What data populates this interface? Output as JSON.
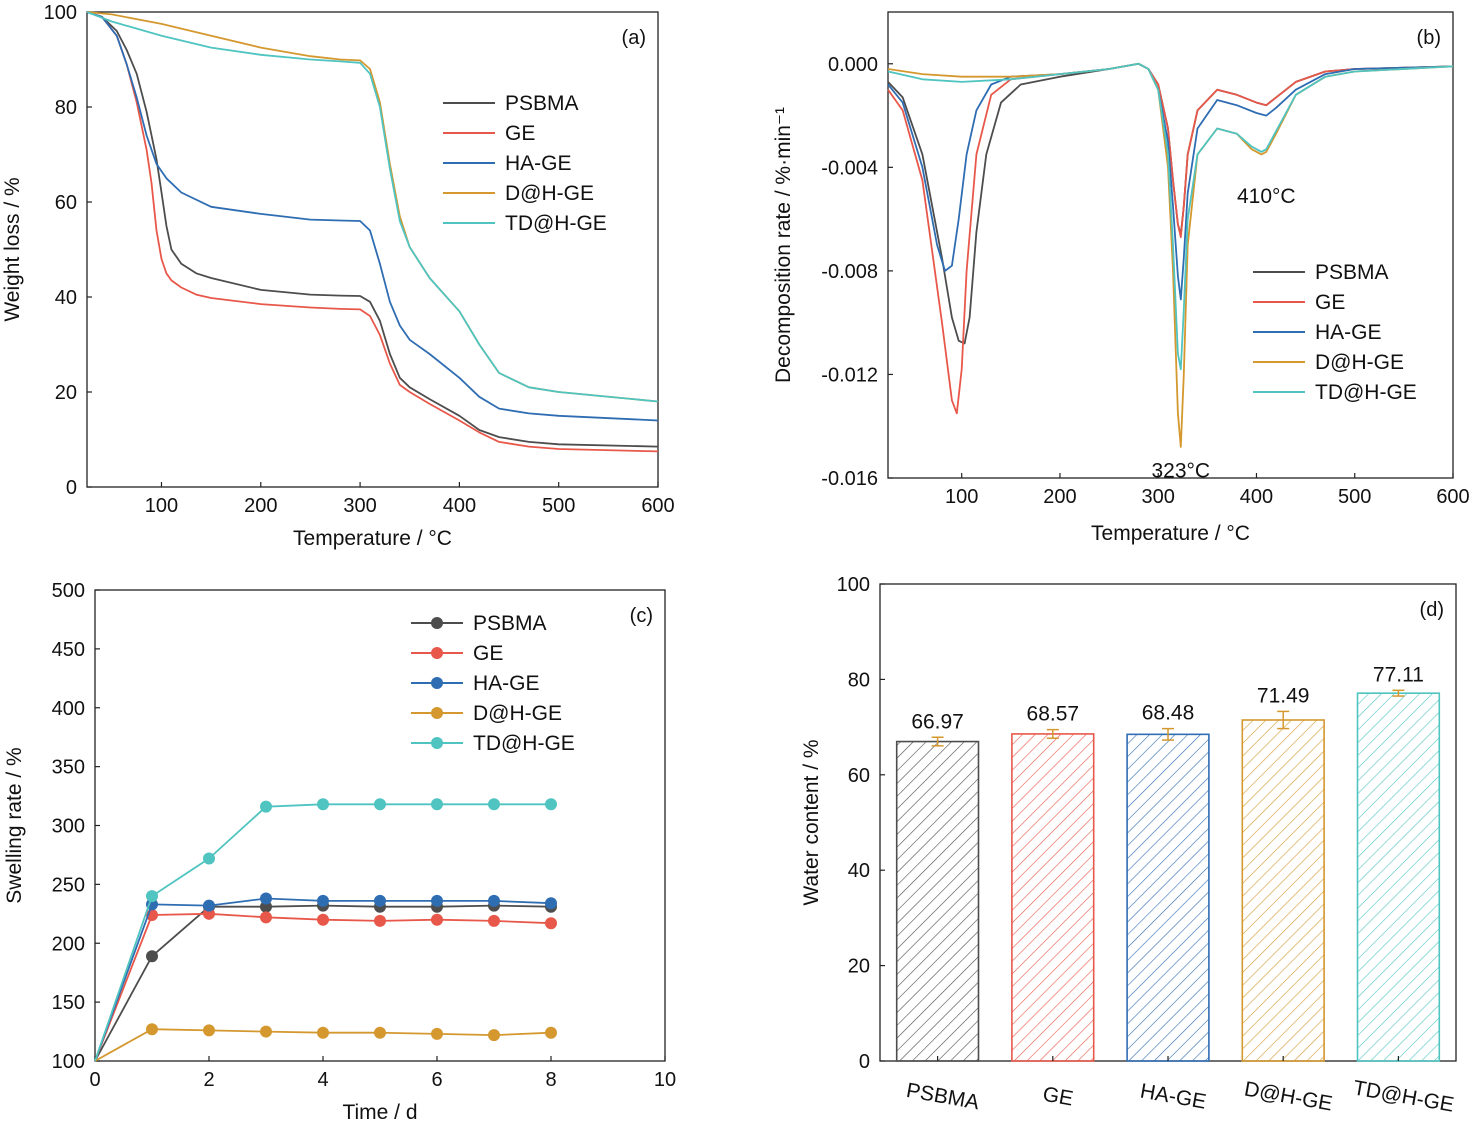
{
  "colors": {
    "PSBMA": "#4d4d4d",
    "GE": "#e8584a",
    "HA-GE": "#2f6db3",
    "D@H-GE": "#d4982f",
    "TD@H-GE": "#4fc4c0"
  },
  "chart_data": [
    {
      "id": "a",
      "type": "line",
      "panel_label": "(a)",
      "xlabel": "Temperature / °C",
      "ylabel": "Weight loss / %",
      "xlim": [
        25,
        600
      ],
      "ylim": [
        0,
        100
      ],
      "xticks": [
        100,
        200,
        300,
        400,
        500,
        600
      ],
      "yticks": [
        0,
        20,
        40,
        60,
        80,
        100
      ],
      "legend_position": "center-right",
      "grid": false,
      "series": [
        {
          "name": "PSBMA",
          "x": [
            25,
            40,
            55,
            65,
            75,
            85,
            95,
            100,
            105,
            110,
            120,
            135,
            150,
            200,
            250,
            280,
            300,
            310,
            320,
            330,
            340,
            350,
            370,
            400,
            420,
            440,
            470,
            500,
            600
          ],
          "y": [
            100,
            99,
            96,
            92,
            87,
            79,
            69,
            62,
            55,
            50,
            47,
            45,
            44,
            41.5,
            40.5,
            40.3,
            40.2,
            39,
            35,
            28,
            23,
            21,
            18.5,
            15,
            12,
            10.5,
            9.5,
            9,
            8.5
          ]
        },
        {
          "name": "GE",
          "x": [
            25,
            40,
            55,
            65,
            75,
            85,
            90,
            95,
            100,
            105,
            110,
            120,
            135,
            150,
            200,
            250,
            280,
            300,
            310,
            320,
            330,
            340,
            350,
            370,
            400,
            420,
            440,
            470,
            500,
            600
          ],
          "y": [
            100,
            99,
            95,
            89,
            81,
            71,
            64,
            54,
            48,
            45,
            43.5,
            42,
            40.5,
            39.8,
            38.5,
            37.8,
            37.5,
            37.4,
            36,
            32,
            26,
            21.5,
            20,
            17.5,
            14,
            11.5,
            9.5,
            8.5,
            8,
            7.5
          ]
        },
        {
          "name": "HA-GE",
          "x": [
            25,
            40,
            55,
            65,
            75,
            85,
            95,
            105,
            120,
            150,
            200,
            250,
            280,
            300,
            310,
            320,
            330,
            340,
            350,
            370,
            400,
            420,
            440,
            470,
            500,
            600
          ],
          "y": [
            100,
            99,
            95,
            89,
            82,
            74,
            68,
            65,
            62,
            59,
            57.5,
            56.3,
            56.1,
            56,
            54,
            47,
            39,
            34,
            31,
            28,
            23,
            19,
            16.5,
            15.5,
            15,
            14
          ]
        },
        {
          "name": "D@H-GE",
          "x": [
            25,
            50,
            100,
            150,
            200,
            250,
            280,
            300,
            310,
            320,
            330,
            340,
            350,
            370,
            400,
            420,
            440,
            470,
            500,
            600
          ],
          "y": [
            100,
            99.5,
            97.5,
            95,
            92.5,
            90.7,
            90,
            89.8,
            88,
            81,
            68,
            57,
            50.5,
            44,
            37,
            30,
            24,
            21,
            20,
            18
          ]
        },
        {
          "name": "TD@H-GE",
          "x": [
            25,
            50,
            100,
            150,
            200,
            250,
            280,
            300,
            310,
            320,
            330,
            340,
            350,
            370,
            400,
            420,
            440,
            470,
            500,
            600
          ],
          "y": [
            100,
            98,
            95,
            92.5,
            91,
            90,
            89.6,
            89.3,
            87,
            80,
            67,
            56,
            50.5,
            44,
            37,
            30,
            24,
            21,
            20,
            18
          ]
        }
      ]
    },
    {
      "id": "b",
      "type": "line",
      "panel_label": "(b)",
      "xlabel": "Temperature / °C",
      "ylabel": "Decomposition rate / %·min⁻¹",
      "xlim": [
        25,
        600
      ],
      "ylim": [
        -0.016,
        0.002
      ],
      "xticks": [
        100,
        200,
        300,
        400,
        500,
        600
      ],
      "yticks": [
        -0.016,
        -0.012,
        -0.008,
        -0.004,
        0.0
      ],
      "ytick_labels": [
        "-0.016",
        "-0.012",
        "-0.008",
        "-0.004",
        "0.000"
      ],
      "legend_position": "lower-right",
      "grid": false,
      "annotations": [
        {
          "text": "323°C",
          "x": 323,
          "y": -0.0152
        },
        {
          "text": "410°C",
          "x": 410,
          "y": -0.0046
        }
      ],
      "series": [
        {
          "name": "PSBMA",
          "x": [
            25,
            40,
            60,
            80,
            90,
            97,
            103,
            108,
            115,
            125,
            140,
            160,
            200,
            250,
            280,
            290,
            300,
            310,
            315,
            320,
            323,
            326,
            330,
            340,
            360,
            380,
            400,
            410,
            420,
            440,
            470,
            500,
            600
          ],
          "y": [
            -0.0007,
            -0.0013,
            -0.0035,
            -0.0075,
            -0.0098,
            -0.0107,
            -0.0108,
            -0.0098,
            -0.0065,
            -0.0035,
            -0.0015,
            -0.0008,
            -0.0005,
            -0.0002,
            0,
            -0.0002,
            -0.0008,
            -0.0025,
            -0.0045,
            -0.0062,
            -0.0066,
            -0.0055,
            -0.0035,
            -0.0018,
            -0.001,
            -0.0012,
            -0.0015,
            -0.0016,
            -0.0013,
            -0.0007,
            -0.0003,
            -0.0002,
            -0.0001
          ]
        },
        {
          "name": "GE",
          "x": [
            25,
            40,
            60,
            80,
            90,
            95,
            100,
            105,
            115,
            130,
            150,
            200,
            250,
            280,
            290,
            300,
            310,
            315,
            320,
            323,
            326,
            330,
            340,
            360,
            380,
            400,
            410,
            420,
            440,
            470,
            500,
            600
          ],
          "y": [
            -0.001,
            -0.0018,
            -0.0045,
            -0.01,
            -0.013,
            -0.0135,
            -0.0118,
            -0.008,
            -0.0035,
            -0.0012,
            -0.0006,
            -0.0004,
            -0.0002,
            0,
            -0.0002,
            -0.0008,
            -0.0025,
            -0.0045,
            -0.0062,
            -0.0067,
            -0.0055,
            -0.0035,
            -0.0018,
            -0.001,
            -0.0012,
            -0.0015,
            -0.0016,
            -0.0013,
            -0.0007,
            -0.0003,
            -0.0002,
            -0.0001
          ]
        },
        {
          "name": "HA-GE",
          "x": [
            25,
            40,
            60,
            75,
            83,
            90,
            97,
            105,
            115,
            130,
            150,
            200,
            250,
            280,
            290,
            300,
            310,
            315,
            320,
            323,
            326,
            330,
            340,
            360,
            380,
            400,
            410,
            420,
            440,
            470,
            500,
            600
          ],
          "y": [
            -0.0008,
            -0.0015,
            -0.004,
            -0.007,
            -0.008,
            -0.0078,
            -0.006,
            -0.0035,
            -0.0018,
            -0.0008,
            -0.0005,
            -0.0004,
            -0.0002,
            0,
            -0.0002,
            -0.001,
            -0.003,
            -0.0055,
            -0.0082,
            -0.0091,
            -0.0075,
            -0.005,
            -0.0025,
            -0.0014,
            -0.0016,
            -0.0019,
            -0.002,
            -0.0017,
            -0.001,
            -0.0004,
            -0.0002,
            -0.0001
          ]
        },
        {
          "name": "D@H-GE",
          "x": [
            25,
            60,
            100,
            150,
            200,
            250,
            280,
            290,
            300,
            310,
            315,
            320,
            323,
            326,
            330,
            340,
            360,
            380,
            395,
            405,
            410,
            420,
            440,
            470,
            500,
            600
          ],
          "y": [
            -0.0002,
            -0.0004,
            -0.0005,
            -0.0005,
            -0.0004,
            -0.0002,
            0,
            -0.0002,
            -0.001,
            -0.004,
            -0.008,
            -0.0135,
            -0.0148,
            -0.012,
            -0.007,
            -0.0035,
            -0.0025,
            -0.0027,
            -0.0033,
            -0.0035,
            -0.0034,
            -0.0027,
            -0.0012,
            -0.0005,
            -0.0003,
            -0.0001
          ]
        },
        {
          "name": "TD@H-GE",
          "x": [
            25,
            60,
            100,
            150,
            200,
            250,
            280,
            290,
            300,
            310,
            315,
            320,
            323,
            326,
            330,
            340,
            360,
            380,
            395,
            405,
            410,
            420,
            440,
            470,
            500,
            600
          ],
          "y": [
            -0.0003,
            -0.0006,
            -0.0007,
            -0.0006,
            -0.0004,
            -0.0002,
            0,
            -0.0002,
            -0.001,
            -0.0035,
            -0.007,
            -0.0112,
            -0.0118,
            -0.0095,
            -0.006,
            -0.0035,
            -0.0025,
            -0.0027,
            -0.0032,
            -0.0034,
            -0.0033,
            -0.0026,
            -0.0012,
            -0.0005,
            -0.0003,
            -0.0001
          ]
        }
      ]
    },
    {
      "id": "c",
      "type": "line",
      "markers": true,
      "panel_label": "(c)",
      "xlabel": "Time / d",
      "ylabel": "Swelling rate / %",
      "xlim": [
        0,
        10
      ],
      "ylim": [
        100,
        500
      ],
      "xticks": [
        0,
        2,
        4,
        6,
        8,
        10
      ],
      "yticks": [
        100,
        150,
        200,
        250,
        300,
        350,
        400,
        450,
        500
      ],
      "legend_position": "top-right",
      "grid": false,
      "series": [
        {
          "name": "PSBMA",
          "x": [
            0,
            1,
            2,
            3,
            4,
            5,
            6,
            7,
            8
          ],
          "y": [
            100,
            189,
            231,
            231,
            232,
            231,
            231,
            232,
            231
          ]
        },
        {
          "name": "GE",
          "x": [
            0,
            1,
            2,
            3,
            4,
            5,
            6,
            7,
            8
          ],
          "y": [
            100,
            224,
            225,
            222,
            220,
            219,
            220,
            219,
            217
          ]
        },
        {
          "name": "HA-GE",
          "x": [
            0,
            1,
            2,
            3,
            4,
            5,
            6,
            7,
            8
          ],
          "y": [
            100,
            233,
            232,
            238,
            236,
            236,
            236,
            236,
            234
          ]
        },
        {
          "name": "D@H-GE",
          "x": [
            0,
            1,
            2,
            3,
            4,
            5,
            6,
            7,
            8
          ],
          "y": [
            100,
            127,
            126,
            125,
            124,
            124,
            123,
            122,
            124
          ]
        },
        {
          "name": "TD@H-GE",
          "x": [
            0,
            1,
            2,
            3,
            4,
            5,
            6,
            7,
            8
          ],
          "y": [
            100,
            240,
            272,
            316,
            318,
            318,
            318,
            318,
            318
          ]
        }
      ]
    },
    {
      "id": "d",
      "type": "bar",
      "panel_label": "(d)",
      "xlabel": "",
      "ylabel": "Water content / %",
      "ylim": [
        0,
        100
      ],
      "yticks": [
        0,
        20,
        40,
        60,
        80,
        100
      ],
      "categories": [
        "PSBMA",
        "GE",
        "HA-GE",
        "D@H-GE",
        "TD@H-GE"
      ],
      "values": [
        66.97,
        68.57,
        68.48,
        71.49,
        77.11
      ],
      "value_labels": [
        "66.97",
        "68.57",
        "68.48",
        "71.49",
        "77.11"
      ],
      "errors": [
        0.9,
        0.9,
        1.2,
        1.8,
        0.6
      ],
      "error_color": "#d4982f",
      "grid": false
    }
  ]
}
